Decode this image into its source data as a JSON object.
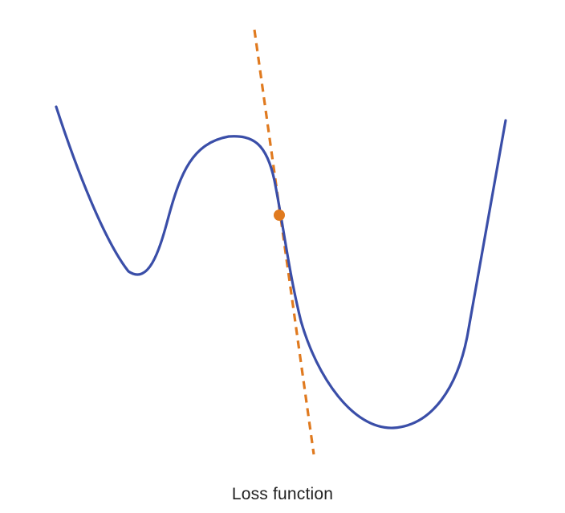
{
  "caption": "Loss function",
  "colors": {
    "curve": "#3a4ea8",
    "tangent": "#e07a1f",
    "point": "#e07a1f",
    "text": "#222222",
    "background": "#ffffff"
  }
}
